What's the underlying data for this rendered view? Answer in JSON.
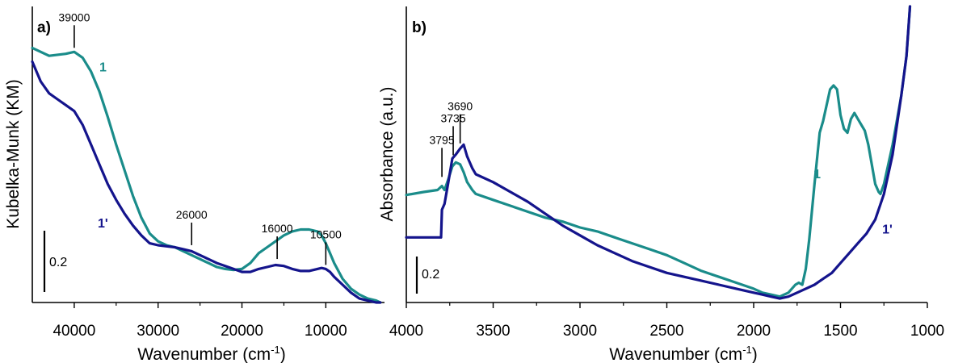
{
  "colors": {
    "teal": "#1a8c8a",
    "navy": "#14148c",
    "axis": "#000000"
  },
  "chart_data": [
    {
      "type": "line",
      "panel_label": "a)",
      "xlabel": "Wavenumber (cm",
      "xlabel_sup": "-1",
      "xlabel_close": ")",
      "ylabel": "Kubelka-Munk (KM)",
      "xlim": [
        45000,
        3000
      ],
      "ylim": [
        0,
        1.5
      ],
      "xticks": [
        "40000",
        "30000",
        "20000",
        "10000"
      ],
      "scale_bar": {
        "label": "0.2",
        "value": 0.2
      },
      "series": [
        {
          "name": "1",
          "color": "#1a8c8a",
          "x": [
            45000,
            43000,
            41000,
            40000,
            39000,
            38000,
            37000,
            36000,
            35000,
            34000,
            33000,
            32000,
            31000,
            30000,
            29000,
            28000,
            27000,
            26000,
            25000,
            24000,
            23000,
            22000,
            21000,
            20000,
            19000,
            18000,
            17000,
            16000,
            15000,
            14000,
            13000,
            12000,
            11000,
            10500,
            10000,
            9500,
            9000,
            8000,
            7000,
            6000,
            5000,
            4000,
            3500
          ],
          "y": [
            1.29,
            1.25,
            1.26,
            1.27,
            1.24,
            1.17,
            1.07,
            0.94,
            0.8,
            0.67,
            0.54,
            0.43,
            0.35,
            0.31,
            0.29,
            0.28,
            0.26,
            0.24,
            0.22,
            0.2,
            0.18,
            0.17,
            0.165,
            0.17,
            0.2,
            0.25,
            0.28,
            0.31,
            0.34,
            0.36,
            0.37,
            0.37,
            0.36,
            0.34,
            0.3,
            0.25,
            0.2,
            0.12,
            0.07,
            0.04,
            0.02,
            0.01,
            0.0
          ]
        },
        {
          "name": "1'",
          "color": "#14148c",
          "x": [
            45000,
            44000,
            43000,
            42000,
            41000,
            40000,
            39000,
            38000,
            37000,
            36000,
            35000,
            34000,
            33000,
            32000,
            31000,
            30000,
            29000,
            28000,
            27000,
            26000,
            25000,
            24000,
            23000,
            22000,
            21000,
            20000,
            19000,
            18000,
            17000,
            16000,
            15000,
            14000,
            13000,
            12000,
            11000,
            10500,
            10000,
            9500,
            9000,
            8000,
            7000,
            6000,
            5000,
            4000,
            3500
          ],
          "y": [
            1.22,
            1.12,
            1.06,
            1.03,
            1.0,
            0.97,
            0.9,
            0.8,
            0.7,
            0.6,
            0.52,
            0.45,
            0.39,
            0.34,
            0.3,
            0.29,
            0.285,
            0.28,
            0.27,
            0.26,
            0.24,
            0.22,
            0.2,
            0.185,
            0.17,
            0.155,
            0.155,
            0.17,
            0.18,
            0.19,
            0.185,
            0.17,
            0.16,
            0.16,
            0.17,
            0.175,
            0.17,
            0.155,
            0.13,
            0.09,
            0.05,
            0.02,
            0.01,
            0.0,
            0.0
          ]
        }
      ],
      "annotations": [
        {
          "label": "39000",
          "x": 40000,
          "y": 1.27
        },
        {
          "label": "26000",
          "x": 26000,
          "y": 0.27
        },
        {
          "label": "16000",
          "x": 15800,
          "y": 0.2
        },
        {
          "label": "10500",
          "x": 10000,
          "y": 0.17
        }
      ],
      "series_labels": [
        {
          "label": "1",
          "x": 37000,
          "y": 1.17,
          "color": "#1a8c8a"
        },
        {
          "label": "1'",
          "x": 37200,
          "y": 0.38,
          "color": "#14148c"
        }
      ]
    },
    {
      "type": "line",
      "panel_label": "b)",
      "xlabel": "Wavenumber (cm",
      "xlabel_sup": "-1",
      "xlabel_close": ")",
      "ylabel": "Absorbance (a.u.)",
      "xlim": [
        4000,
        1000
      ],
      "ylim": [
        0,
        1.5
      ],
      "xticks": [
        "4000",
        "3500",
        "3000",
        "2500",
        "2000",
        "1500",
        "1000"
      ],
      "scale_bar": {
        "label": "0.2",
        "value": 0.2
      },
      "series": [
        {
          "name": "1",
          "color": "#1a8c8a",
          "x": [
            4000,
            3900,
            3820,
            3795,
            3780,
            3760,
            3735,
            3715,
            3690,
            3670,
            3650,
            3620,
            3600,
            3500,
            3400,
            3300,
            3200,
            3100,
            3000,
            2900,
            2800,
            2700,
            2600,
            2500,
            2400,
            2300,
            2200,
            2100,
            2000,
            1950,
            1900,
            1850,
            1800,
            1760,
            1740,
            1720,
            1700,
            1680,
            1650,
            1620,
            1600,
            1560,
            1540,
            1520,
            1500,
            1480,
            1460,
            1440,
            1420,
            1400,
            1380,
            1360,
            1340,
            1320,
            1300,
            1280,
            1270,
            1250,
            1200,
            1150,
            1120,
            1100
          ],
          "y": [
            0.545,
            0.56,
            0.57,
            0.59,
            0.57,
            0.62,
            0.69,
            0.71,
            0.7,
            0.66,
            0.61,
            0.57,
            0.55,
            0.52,
            0.49,
            0.46,
            0.43,
            0.41,
            0.38,
            0.36,
            0.33,
            0.3,
            0.27,
            0.24,
            0.2,
            0.16,
            0.13,
            0.1,
            0.07,
            0.05,
            0.04,
            0.03,
            0.05,
            0.09,
            0.1,
            0.09,
            0.17,
            0.32,
            0.6,
            0.86,
            0.92,
            1.08,
            1.1,
            1.08,
            0.95,
            0.88,
            0.86,
            0.93,
            0.96,
            0.93,
            0.9,
            0.87,
            0.8,
            0.7,
            0.6,
            0.56,
            0.55,
            0.6,
            0.8,
            1.05,
            1.25,
            1.5
          ]
        },
        {
          "name": "1'",
          "color": "#14148c",
          "x": [
            4000,
            3900,
            3820,
            3800,
            3795,
            3780,
            3760,
            3735,
            3715,
            3690,
            3670,
            3650,
            3620,
            3600,
            3500,
            3400,
            3300,
            3200,
            3100,
            3000,
            2900,
            2800,
            2700,
            2600,
            2500,
            2400,
            2300,
            2200,
            2100,
            2000,
            1950,
            1900,
            1850,
            1800,
            1750,
            1700,
            1650,
            1600,
            1550,
            1500,
            1450,
            1400,
            1350,
            1300,
            1250,
            1200,
            1150,
            1120,
            1100
          ],
          "y": [
            0.33,
            0.33,
            0.33,
            0.33,
            0.47,
            0.5,
            0.6,
            0.73,
            0.75,
            0.78,
            0.8,
            0.74,
            0.68,
            0.65,
            0.61,
            0.56,
            0.51,
            0.45,
            0.39,
            0.34,
            0.29,
            0.25,
            0.21,
            0.18,
            0.15,
            0.13,
            0.11,
            0.09,
            0.07,
            0.05,
            0.04,
            0.03,
            0.02,
            0.03,
            0.05,
            0.07,
            0.09,
            0.12,
            0.15,
            0.2,
            0.25,
            0.3,
            0.35,
            0.42,
            0.55,
            0.75,
            1.05,
            1.25,
            1.5
          ]
        }
      ],
      "annotations": [
        {
          "label": "3795",
          "x": 3795,
          "y": 0.62
        },
        {
          "label": "3735",
          "x": 3730,
          "y": 0.73
        },
        {
          "label": "3690",
          "x": 3690,
          "y": 0.79
        }
      ],
      "series_labels": [
        {
          "label": "1",
          "x": 1655,
          "y": 0.63,
          "color": "#1a8c8a"
        },
        {
          "label": "1'",
          "x": 1260,
          "y": 0.35,
          "color": "#14148c"
        }
      ]
    }
  ]
}
